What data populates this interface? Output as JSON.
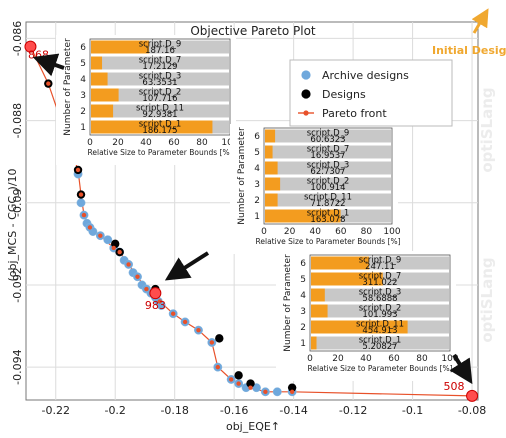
{
  "chart_data": {
    "type": "scatter",
    "title": "Objective Pareto Plot",
    "xlabel": "obj_EQE↑",
    "ylabel": "(obj_MCS - CGC_)/10",
    "xlim": [
      -0.23,
      -0.078
    ],
    "ylim": [
      -0.0948,
      -0.0856
    ],
    "xticks": [
      -0.22,
      -0.2,
      -0.18,
      -0.16,
      -0.14,
      -0.12,
      -0.1,
      -0.08
    ],
    "yticks": [
      -0.086,
      -0.088,
      -0.09,
      -0.092,
      -0.094
    ],
    "grid": true,
    "legend_position": "top-right",
    "watermark": "optiSLang",
    "colors": {
      "archive": "#6fa8dc",
      "designs": "#000000",
      "pareto": "#e8512a",
      "initial": "#f0a830",
      "bar_fill": "#f39c1f",
      "bar_bg": "#c8c8c8"
    },
    "legend": [
      {
        "name": "Archive designs",
        "marker": "archive"
      },
      {
        "name": "Designs",
        "marker": "designs"
      },
      {
        "name": "Pareto front",
        "marker": "pareto"
      }
    ],
    "initial_design_label": "Initial Design",
    "series": [
      {
        "name": "Archive designs",
        "points": [
          [
            -0.2125,
            -0.0893
          ],
          [
            -0.2115,
            -0.09
          ],
          [
            -0.2105,
            -0.0903
          ],
          [
            -0.2095,
            -0.0905
          ],
          [
            -0.2085,
            -0.0906
          ],
          [
            -0.2075,
            -0.0907
          ],
          [
            -0.205,
            -0.0908
          ],
          [
            -0.2025,
            -0.0909
          ],
          [
            -0.2005,
            -0.0911
          ],
          [
            -0.1985,
            -0.0912
          ],
          [
            -0.197,
            -0.0914
          ],
          [
            -0.1955,
            -0.0915
          ],
          [
            -0.194,
            -0.0917
          ],
          [
            -0.1925,
            -0.0918
          ],
          [
            -0.191,
            -0.092
          ],
          [
            -0.1895,
            -0.0921
          ],
          [
            -0.188,
            -0.0922
          ],
          [
            -0.1865,
            -0.0923
          ],
          [
            -0.1855,
            -0.0924
          ],
          [
            -0.1845,
            -0.0925
          ],
          [
            -0.1805,
            -0.0927
          ],
          [
            -0.1765,
            -0.0929
          ],
          [
            -0.172,
            -0.0931
          ],
          [
            -0.1675,
            -0.0934
          ],
          [
            -0.1655,
            -0.094
          ],
          [
            -0.161,
            -0.0943
          ],
          [
            -0.1585,
            -0.0944
          ],
          [
            -0.156,
            -0.0945
          ],
          [
            -0.1525,
            -0.0945
          ],
          [
            -0.1495,
            -0.0946
          ],
          [
            -0.1455,
            -0.0946
          ],
          [
            -0.1405,
            -0.0946
          ],
          [
            -0.08,
            -0.0947
          ]
        ]
      },
      {
        "name": "Designs",
        "points": [
          [
            -0.2225,
            -0.0871
          ],
          [
            -0.2125,
            -0.0892
          ],
          [
            -0.2115,
            -0.0898
          ],
          [
            -0.2,
            -0.091
          ],
          [
            -0.1985,
            -0.0912
          ],
          [
            -0.1865,
            -0.0921
          ],
          [
            -0.1865,
            -0.0922
          ],
          [
            -0.165,
            -0.0933
          ],
          [
            -0.1585,
            -0.0942
          ],
          [
            -0.1545,
            -0.0944
          ],
          [
            -0.1405,
            -0.0945
          ]
        ]
      },
      {
        "name": "Pareto front",
        "points": [
          [
            -0.2285,
            -0.0862
          ],
          [
            -0.2225,
            -0.0871
          ],
          [
            -0.2125,
            -0.0892
          ],
          [
            -0.2115,
            -0.0898
          ],
          [
            -0.2105,
            -0.0903
          ],
          [
            -0.2085,
            -0.0906
          ],
          [
            -0.205,
            -0.0908
          ],
          [
            -0.2005,
            -0.0911
          ],
          [
            -0.1985,
            -0.0912
          ],
          [
            -0.1955,
            -0.0915
          ],
          [
            -0.1925,
            -0.0918
          ],
          [
            -0.1895,
            -0.0921
          ],
          [
            -0.1865,
            -0.0922
          ],
          [
            -0.185,
            -0.0924
          ],
          [
            -0.1805,
            -0.0927
          ],
          [
            -0.1765,
            -0.0929
          ],
          [
            -0.172,
            -0.0931
          ],
          [
            -0.1675,
            -0.0934
          ],
          [
            -0.1655,
            -0.094
          ],
          [
            -0.161,
            -0.0943
          ],
          [
            -0.1585,
            -0.0944
          ],
          [
            -0.1545,
            -0.0945
          ],
          [
            -0.1495,
            -0.0946
          ],
          [
            -0.1405,
            -0.0946
          ],
          [
            -0.08,
            -0.0947
          ]
        ]
      }
    ],
    "highlights": [
      {
        "label": "868",
        "x": -0.2285,
        "y": -0.0862
      },
      {
        "label": "983",
        "x": -0.1865,
        "y": -0.0922
      },
      {
        "label": "508",
        "x": -0.08,
        "y": -0.0947
      }
    ],
    "insets": [
      {
        "id": "868",
        "ylabel": "Number of Parameter",
        "xlabel": "Relative Size to Parameter Bounds [%]",
        "xticks": [
          0,
          20,
          40,
          60,
          80,
          100
        ],
        "yticks": [
          1,
          2,
          3,
          4,
          5,
          6
        ],
        "bars": [
          {
            "param": "script.D_9",
            "value": "187.16",
            "percent": 42
          },
          {
            "param": "script.D_7",
            "value": "17.2129",
            "percent": 8
          },
          {
            "param": "script.D_3",
            "value": "63.3531",
            "percent": 12
          },
          {
            "param": "script.D_2",
            "value": "107.716",
            "percent": 20
          },
          {
            "param": "script.D_11",
            "value": "92.9381",
            "percent": 16
          },
          {
            "param": "script.D_1",
            "value": "186.175",
            "percent": 88
          }
        ]
      },
      {
        "id": "983",
        "ylabel": "Number of Parameter",
        "xlabel": "Relative Size to Parameter Bounds [%]",
        "xticks": [
          0,
          20,
          40,
          60,
          80,
          100
        ],
        "yticks": [
          1,
          2,
          3,
          4,
          5,
          6
        ],
        "bars": [
          {
            "param": "script.D_9",
            "value": "60.6323",
            "percent": 8
          },
          {
            "param": "script.D_7",
            "value": "16.9537",
            "percent": 6
          },
          {
            "param": "script.D_3",
            "value": "62.7307",
            "percent": 10
          },
          {
            "param": "script.D_2",
            "value": "100.914",
            "percent": 12
          },
          {
            "param": "script.D_11",
            "value": "71.8722",
            "percent": 10
          },
          {
            "param": "script.D_1",
            "value": "163.078",
            "percent": 60
          }
        ]
      },
      {
        "id": "508",
        "ylabel": "Number of Parameter",
        "xlabel": "Relative Size to Parameter Bounds [%]",
        "xticks": [
          0,
          20,
          40,
          60,
          80,
          100
        ],
        "yticks": [
          1,
          2,
          3,
          4,
          5,
          6
        ],
        "bars": [
          {
            "param": "script.D_9",
            "value": "247.11",
            "percent": 42
          },
          {
            "param": "script.D_7",
            "value": "311.022",
            "percent": 52
          },
          {
            "param": "script.D_3",
            "value": "58.6888",
            "percent": 10
          },
          {
            "param": "script.D_2",
            "value": "101.993",
            "percent": 12
          },
          {
            "param": "script.D_11",
            "value": "454.913",
            "percent": 70
          },
          {
            "param": "script.D_1",
            "value": "5.20827",
            "percent": 4
          }
        ]
      }
    ]
  }
}
